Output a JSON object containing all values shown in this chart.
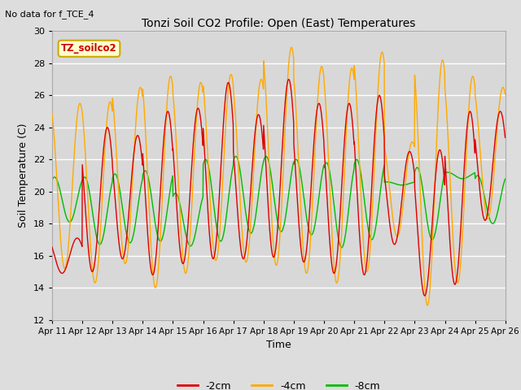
{
  "title": "Tonzi Soil CO2 Profile: Open (East) Temperatures",
  "subtitle": "No data for f_TCE_4",
  "ylabel": "Soil Temperature (C)",
  "xlabel": "Time",
  "legend_label": "TZ_soilco2",
  "ylim": [
    12,
    30
  ],
  "series": {
    "neg2cm": {
      "label": "-2cm",
      "color": "#dd0000"
    },
    "neg4cm": {
      "label": "-4cm",
      "color": "#ffaa00"
    },
    "neg8cm": {
      "label": "-8cm",
      "color": "#00bb00"
    }
  },
  "background_color": "#dddddd",
  "plot_bg_color": "#d8d8d8",
  "num_days": 15,
  "points_per_day": 144,
  "x_tick_labels": [
    "Apr 11",
    "Apr 12",
    "Apr 13",
    "Apr 14",
    "Apr 15",
    "Apr 16",
    "Apr 17",
    "Apr 18",
    "Apr 19",
    "Apr 20",
    "Apr 21",
    "Apr 22",
    "Apr 23",
    "Apr 24",
    "Apr 25",
    "Apr 26"
  ],
  "day_mins_2cm": [
    14.9,
    15.0,
    15.8,
    14.8,
    15.5,
    15.8,
    15.8,
    15.9,
    15.6,
    14.9,
    14.8,
    16.7,
    13.5,
    14.2,
    18.2
  ],
  "day_maxs_2cm": [
    17.1,
    24.0,
    23.5,
    25.0,
    25.2,
    26.8,
    24.8,
    27.0,
    25.5,
    25.5,
    26.0,
    22.5,
    22.6,
    25.0,
    25.0
  ],
  "day_mins_4cm": [
    15.2,
    14.3,
    15.5,
    14.0,
    14.9,
    15.7,
    15.6,
    15.4,
    14.9,
    14.3,
    15.0,
    17.2,
    12.9,
    14.3,
    18.3
  ],
  "day_maxs_4cm": [
    25.5,
    25.6,
    26.5,
    27.2,
    26.8,
    27.3,
    27.0,
    29.0,
    27.8,
    27.7,
    28.7,
    23.1,
    28.2,
    27.2,
    26.5
  ],
  "day_mins_8cm": [
    18.1,
    16.7,
    16.8,
    16.9,
    16.6,
    16.9,
    17.4,
    17.5,
    17.3,
    16.5,
    17.0,
    20.4,
    17.0,
    20.8,
    18.0
  ],
  "day_maxs_8cm": [
    20.9,
    20.9,
    21.1,
    21.3,
    19.9,
    22.0,
    22.2,
    22.2,
    22.0,
    21.8,
    22.0,
    20.6,
    21.5,
    21.2,
    21.0
  ],
  "peak_hour_2cm": 0.58,
  "peak_hour_4cm": 0.67,
  "peak_hour_8cm": 0.83
}
